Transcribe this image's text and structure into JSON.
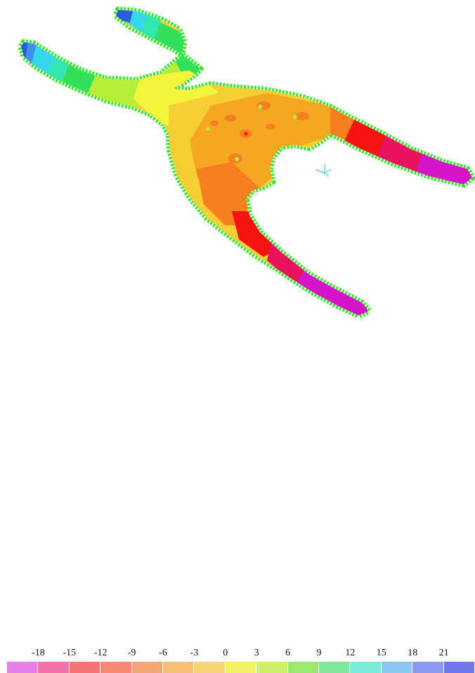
{
  "legend": {
    "tick_labels": [
      "-18",
      "-15",
      "-12",
      "-9",
      "-6",
      "-3",
      "0",
      "3",
      "6",
      "9",
      "12",
      "15",
      "18",
      "21"
    ],
    "band_colors": [
      "#e87ee8",
      "#ee73a6",
      "#f47575",
      "#f58a76",
      "#f4a774",
      "#f6bf78",
      "#f7d47a",
      "#f2ef68",
      "#cdef6c",
      "#9ae86d",
      "#7ee69d",
      "#7cecd8",
      "#8cc6f3",
      "#8c9af0",
      "#6f77e6"
    ]
  },
  "contour_colors": {
    "dark_blue": "#2d5bd9",
    "blue": "#3f8ff0",
    "cyan": "#37d8ee",
    "teal": "#34e7b0",
    "green": "#33e05a",
    "yellow_green": "#b6ee3a",
    "yellow": "#f2f43d",
    "yellow_orange": "#f5cf33",
    "orange": "#f5a623",
    "deep_orange": "#f67f1f",
    "red": "#f5140f",
    "crimson": "#e8125e",
    "magenta": "#d314c8",
    "edge_green": "#35e62b"
  },
  "axis_triad": {
    "color": "#2bc3e6"
  }
}
